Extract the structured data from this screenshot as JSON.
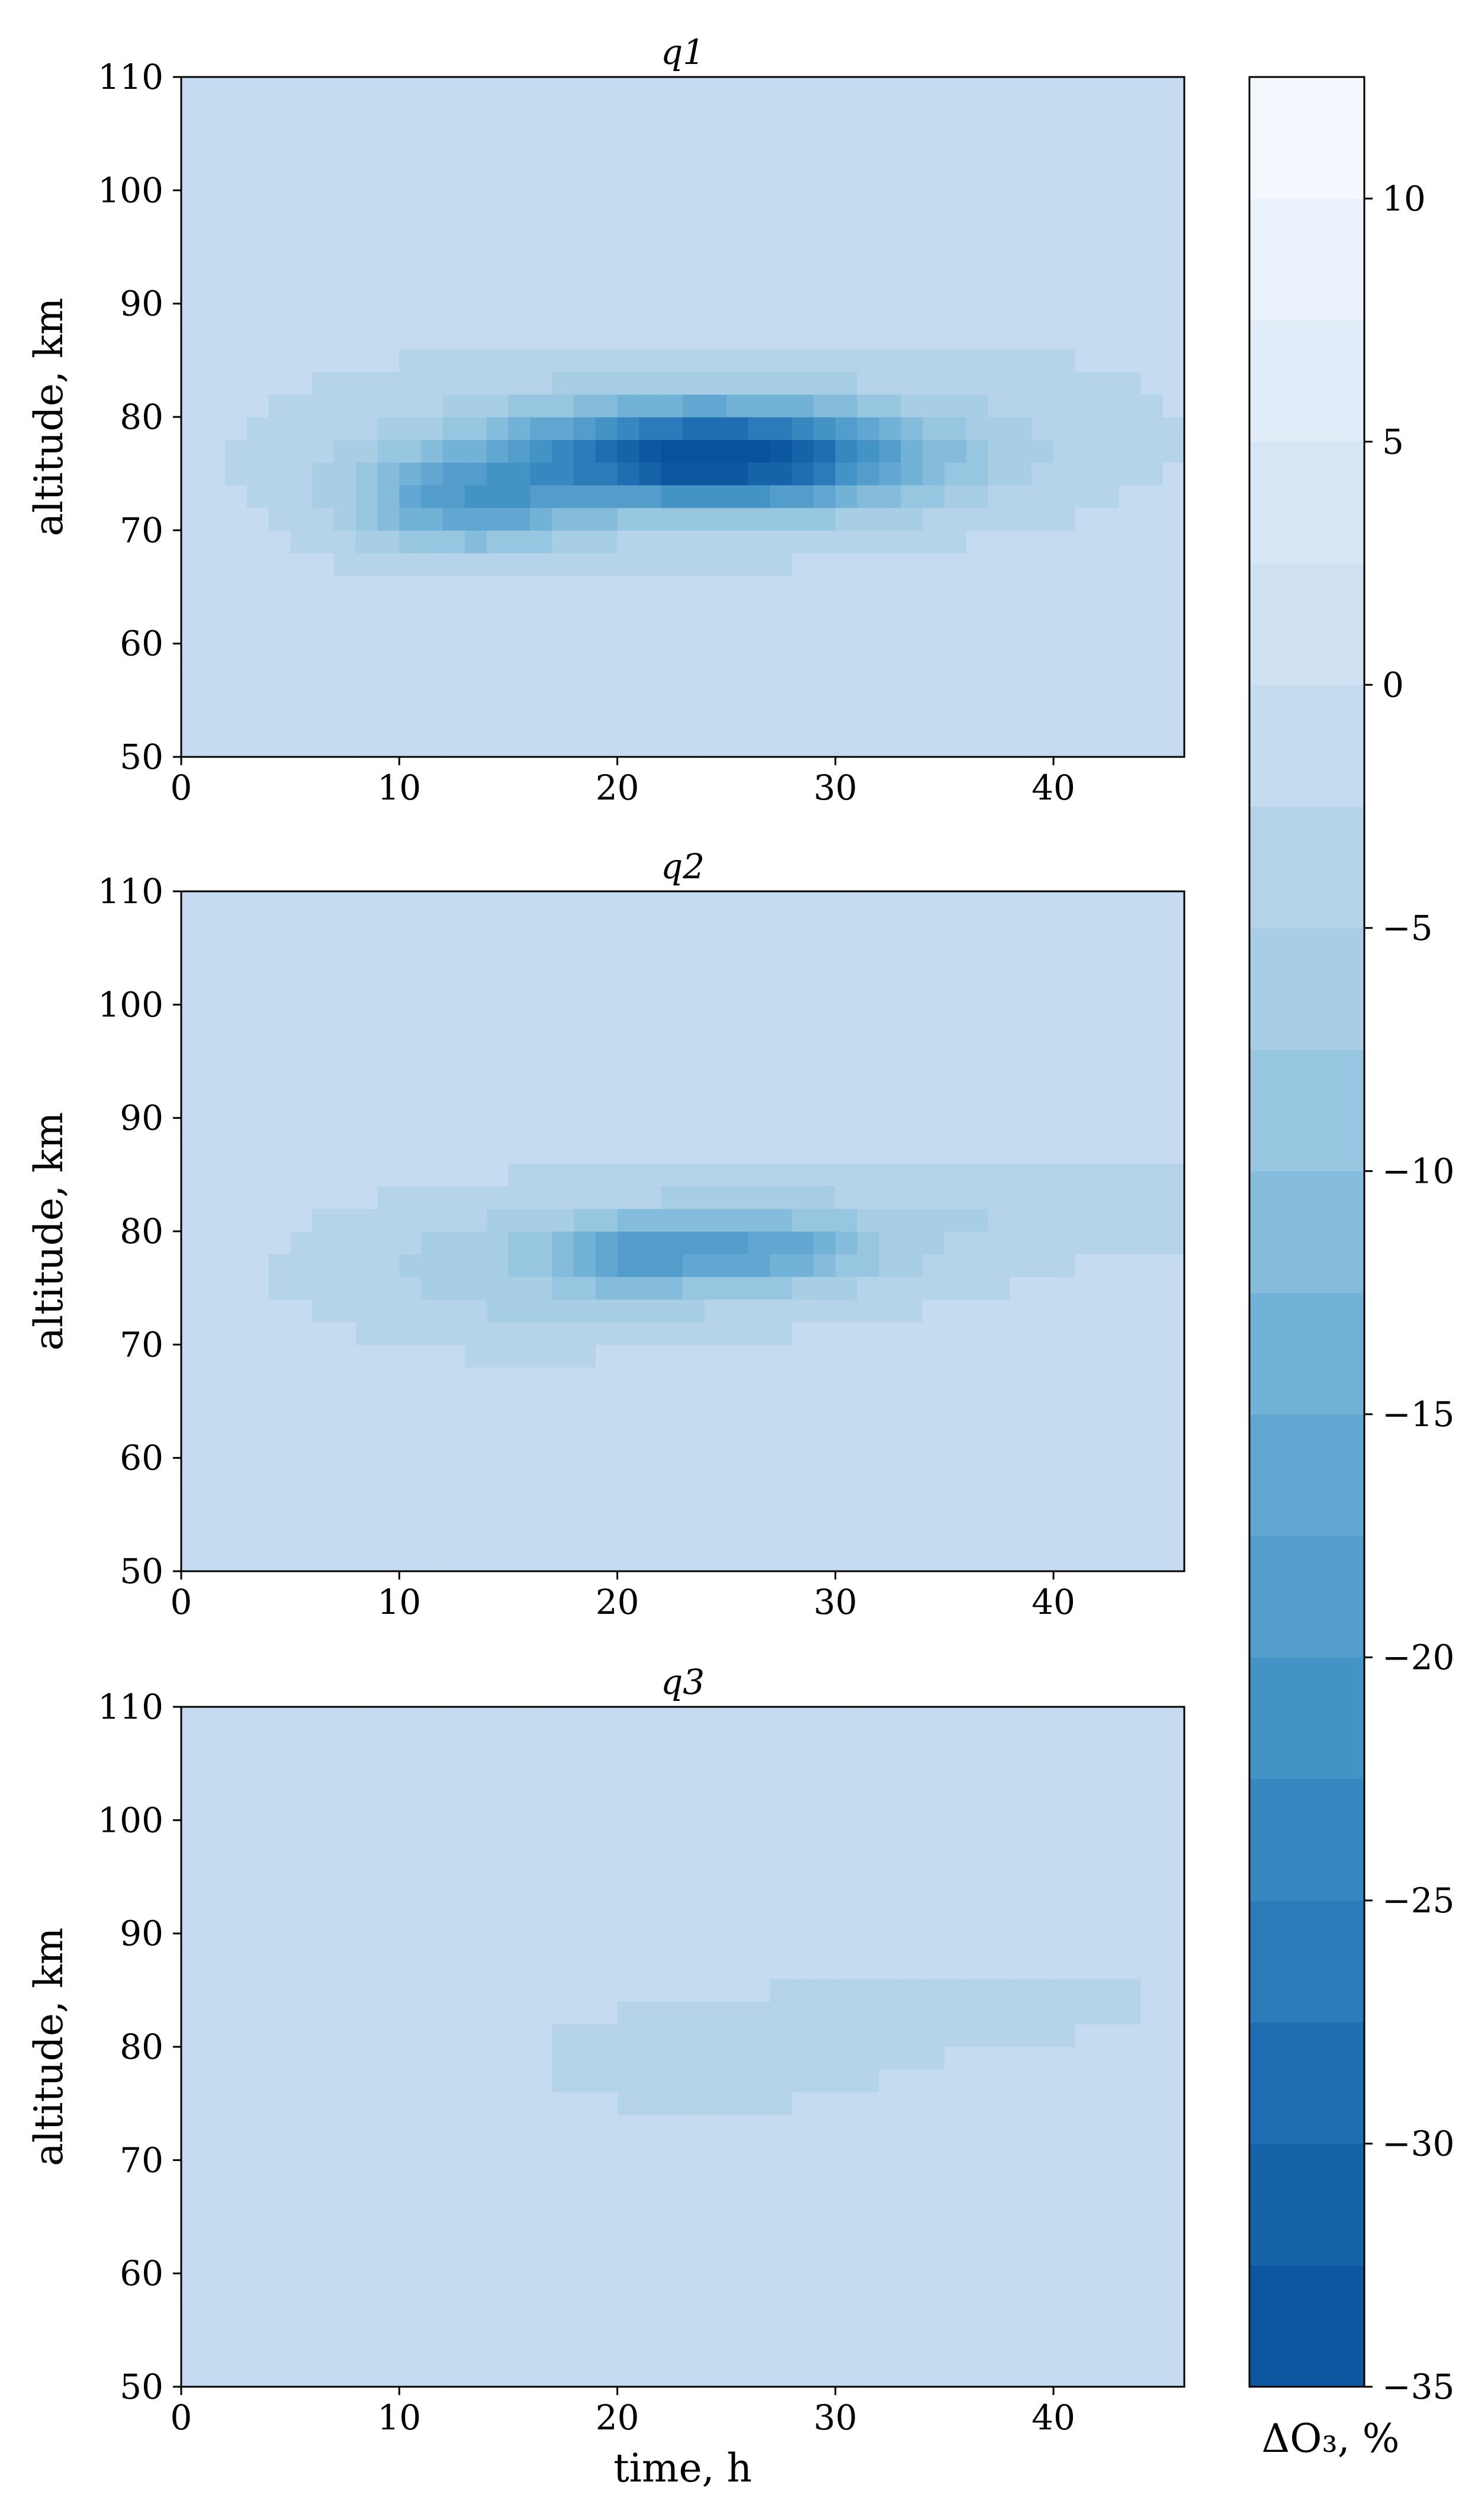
{
  "chart_data": [
    {
      "type": "heatmap",
      "title": "q1",
      "xlabel": "",
      "ylabel": "altitude, km",
      "xlim": [
        0,
        46
      ],
      "ylim": [
        50,
        110
      ],
      "xticks": [
        "0",
        "10",
        "20",
        "30",
        "40"
      ],
      "yticks": [
        "50",
        "60",
        "70",
        "80",
        "90",
        "100",
        "110"
      ],
      "features": [
        {
          "t": 24.5,
          "alt": 76.5,
          "st": 6.0,
          "sa": 3.0,
          "amp": -33
        },
        {
          "t": 13.0,
          "alt": 72.5,
          "st": 3.5,
          "sa": 3.0,
          "amp": -14
        },
        {
          "t": 22.0,
          "alt": 77.0,
          "st": 13.0,
          "sa": 6.5,
          "amp": -4
        },
        {
          "t": 40.0,
          "alt": 80.0,
          "st": 5.0,
          "sa": 5.0,
          "amp": -1
        }
      ]
    },
    {
      "type": "heatmap",
      "title": "q2",
      "xlabel": "",
      "ylabel": "altitude, km",
      "xlim": [
        0,
        46
      ],
      "ylim": [
        50,
        110
      ],
      "xticks": [
        "0",
        "10",
        "20",
        "30",
        "40"
      ],
      "yticks": [
        "50",
        "60",
        "70",
        "80",
        "90",
        "100",
        "110"
      ],
      "features": [
        {
          "t": 21.0,
          "alt": 78.0,
          "st": 2.5,
          "sa": 2.0,
          "amp": -11
        },
        {
          "t": 27.0,
          "alt": 78.5,
          "st": 3.0,
          "sa": 2.0,
          "amp": -10
        },
        {
          "t": 24.0,
          "alt": 78.0,
          "st": 9.0,
          "sa": 4.0,
          "amp": -5
        },
        {
          "t": 15.0,
          "alt": 76.0,
          "st": 7.0,
          "sa": 5.0,
          "amp": -3
        },
        {
          "t": 40.0,
          "alt": 82.5,
          "st": 8.0,
          "sa": 3.0,
          "amp": -3
        }
      ]
    },
    {
      "type": "heatmap",
      "title": "q3",
      "xlabel": "time, h",
      "ylabel": "altitude, km",
      "xlim": [
        0,
        46
      ],
      "ylim": [
        50,
        110
      ],
      "xticks": [
        "0",
        "10",
        "20",
        "30",
        "40"
      ],
      "yticks": [
        "50",
        "60",
        "70",
        "80",
        "90",
        "100",
        "110"
      ],
      "features": [
        {
          "t": 24.0,
          "alt": 79.0,
          "st": 8.0,
          "sa": 5.0,
          "amp": -2
        },
        {
          "t": 40.0,
          "alt": 84.0,
          "st": 8.0,
          "sa": 4.0,
          "amp": -1.5
        }
      ]
    }
  ],
  "colorbar": {
    "label": "ΔO₃, %",
    "range": [
      -35,
      12.5
    ],
    "levels": [
      -35,
      -32.5,
      -30,
      -27.5,
      -25,
      -22.5,
      -20,
      -17.5,
      -15,
      -12.5,
      -10,
      -7.5,
      -5,
      -2.5,
      0,
      2.5,
      5,
      7.5,
      10,
      12.5
    ],
    "ticks": [
      "10",
      "5",
      "0",
      "−5",
      "−10",
      "−15",
      "−20",
      "−25",
      "−30",
      "−35"
    ],
    "tick_values": [
      10,
      5,
      0,
      -5,
      -10,
      -15,
      -20,
      -25,
      -30,
      -35
    ],
    "colors": [
      "#f7fbff",
      "#deebf7",
      "#c6dbef",
      "#9ecae1",
      "#6baed6",
      "#4292c6",
      "#2171b5",
      "#08519c"
    ]
  }
}
